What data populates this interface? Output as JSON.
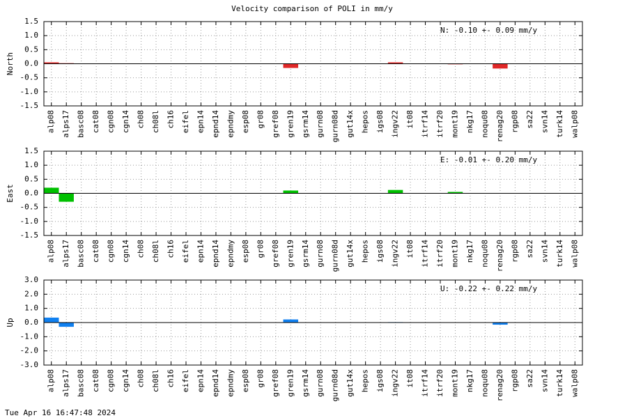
{
  "title": "Velocity comparison of POLI in mm/y",
  "footer": "Tue Apr 16 16:47:48 2024",
  "chart_data": [
    {
      "type": "bar",
      "ylabel": "North",
      "annotation": "N:  -0.10 +-  0.09 mm/y",
      "color": "#e02828",
      "grid": true,
      "categories": [
        "alp08",
        "alps17",
        "basc08",
        "cat08",
        "cgn08",
        "cgn14",
        "ch08",
        "ch08l",
        "ch16",
        "eifel",
        "epn14",
        "epnd14",
        "epndmy",
        "esp08",
        "gr08",
        "gref08",
        "gren19",
        "gsrm14",
        "gurn08",
        "gurn08d",
        "gut14x",
        "hepos",
        "igs08",
        "ingv22",
        "it08",
        "itrf14",
        "itrf20",
        "mont19",
        "nkg17",
        "noqu08",
        "renag20",
        "rgp08",
        "sa22",
        "svn14",
        "turk14",
        "walp08"
      ],
      "values": [
        0.05,
        0.02,
        0,
        0,
        0,
        0,
        0,
        0,
        0,
        0,
        0,
        0,
        0,
        0,
        0,
        0,
        -0.15,
        0,
        0,
        0,
        0,
        0,
        0,
        0.05,
        0,
        0,
        0,
        -0.02,
        0,
        0,
        -0.17,
        0,
        0,
        0,
        0,
        0
      ],
      "ylim": [
        -1.5,
        1.5
      ],
      "yticks": [
        -1.5,
        {
          "value": -1,
          "label": "-1.0"
        },
        -0.5,
        {
          "value": 0,
          "label": "0.0"
        },
        0.5,
        {
          "value": 1,
          "label": "1.0"
        },
        1.5
      ]
    },
    {
      "type": "bar",
      "ylabel": "East",
      "annotation": "E:  -0.01 +-  0.20 mm/y",
      "color": "#00c000",
      "grid": true,
      "categories": [
        "alp08",
        "alps17",
        "basc08",
        "cat08",
        "cgn08",
        "cgn14",
        "ch08",
        "ch08l",
        "ch16",
        "eifel",
        "epn14",
        "epnd14",
        "epndmy",
        "esp08",
        "gr08",
        "gref08",
        "gren19",
        "gsrm14",
        "gurn08",
        "gurn08d",
        "gut14x",
        "hepos",
        "igs08",
        "ingv22",
        "it08",
        "itrf14",
        "itrf20",
        "mont19",
        "nkg17",
        "noqu08",
        "renag20",
        "rgp08",
        "sa22",
        "svn14",
        "turk14",
        "walp08"
      ],
      "values": [
        0.2,
        -0.3,
        0,
        0,
        0,
        0,
        0,
        0,
        0,
        0,
        0,
        0,
        0,
        0,
        0,
        0,
        0.1,
        0,
        0,
        0,
        0,
        0,
        0,
        0.12,
        0,
        0,
        0,
        0.05,
        0,
        0,
        0,
        0,
        0,
        0,
        0,
        0
      ],
      "ylim": [
        -1.5,
        1.5
      ],
      "yticks": [
        -1.5,
        {
          "value": -1,
          "label": "-1.0"
        },
        -0.5,
        {
          "value": 0,
          "label": "0.0"
        },
        0.5,
        {
          "value": 1,
          "label": "1.0"
        },
        1.5
      ]
    },
    {
      "type": "bar",
      "ylabel": "Up",
      "annotation": "U:  -0.22 +-  0.22 mm/y",
      "color": "#1080f0",
      "grid": true,
      "categories": [
        "alp08",
        "alps17",
        "basc08",
        "cat08",
        "cgn08",
        "cgn14",
        "ch08",
        "ch08l",
        "ch16",
        "eifel",
        "epn14",
        "epnd14",
        "epndmy",
        "esp08",
        "gr08",
        "gref08",
        "gren19",
        "gsrm14",
        "gurn08",
        "gurn08d",
        "gut14x",
        "hepos",
        "igs08",
        "ingv22",
        "it08",
        "itrf14",
        "itrf20",
        "mont19",
        "nkg17",
        "noqu08",
        "renag20",
        "rgp08",
        "sa22",
        "svn14",
        "turk14",
        "walp08"
      ],
      "values": [
        0.35,
        -0.3,
        0,
        0,
        0,
        0,
        0,
        0,
        0,
        0,
        0,
        0,
        0,
        0,
        0,
        0,
        0.22,
        0,
        0,
        0,
        0,
        0,
        0,
        0.03,
        0,
        0,
        0,
        0,
        0,
        0,
        -0.15,
        0,
        0,
        0,
        0,
        0
      ],
      "ylim": [
        -3,
        3
      ],
      "yticks": [
        {
          "value": -3,
          "label": "-3.0"
        },
        {
          "value": -2,
          "label": "-2.0"
        },
        {
          "value": -1,
          "label": "-1.0"
        },
        {
          "value": 0,
          "label": "0.0"
        },
        {
          "value": 1,
          "label": "1.0"
        },
        {
          "value": 2,
          "label": "2.0"
        },
        {
          "value": 3,
          "label": "3.0"
        }
      ]
    }
  ]
}
